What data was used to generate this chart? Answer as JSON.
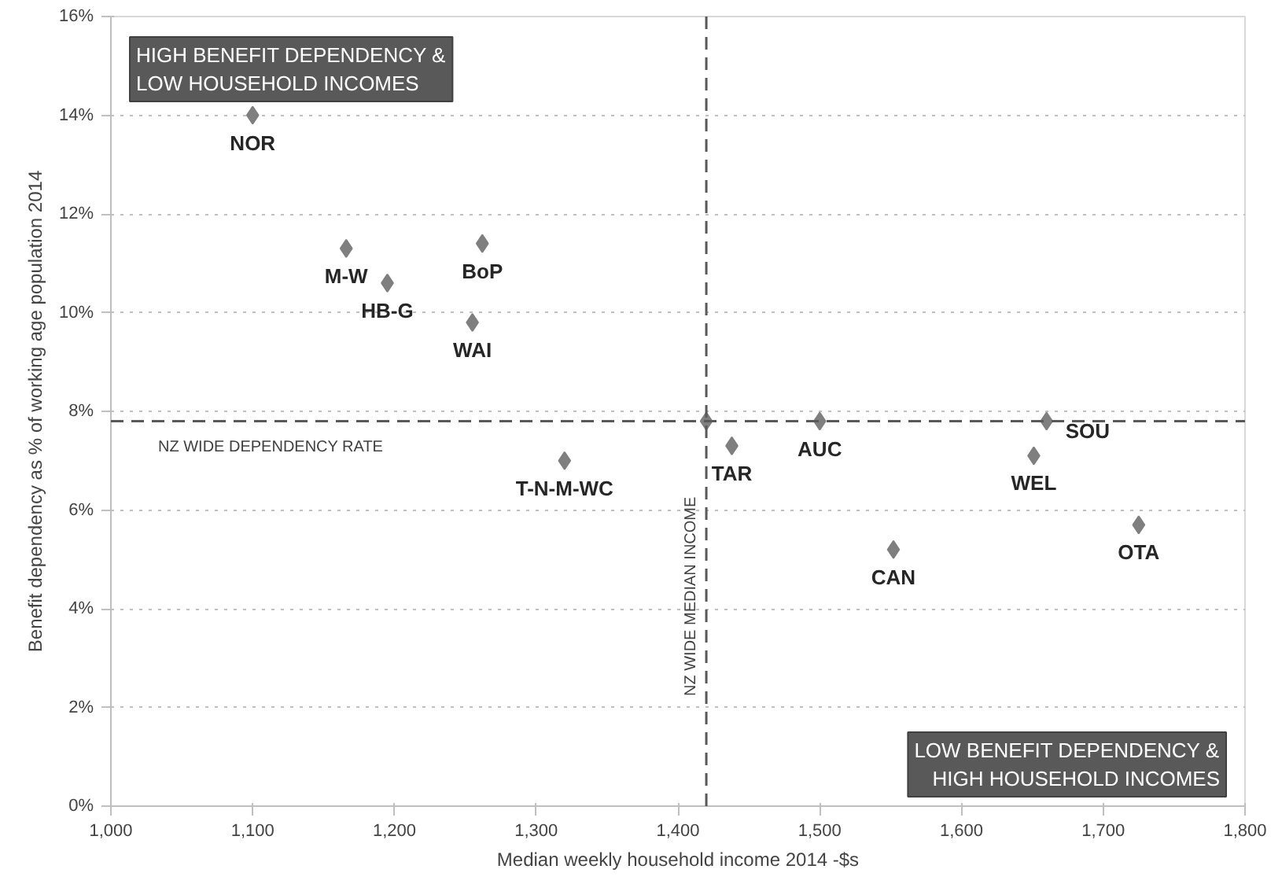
{
  "chart_data": {
    "type": "scatter",
    "xlabel": "Median weekly household income 2014 -$s",
    "ylabel": "Benefit dependency as % of working age population 2014",
    "x": [
      1100,
      1166,
      1195,
      1262,
      1255,
      1320,
      1420,
      1438,
      1500,
      1552,
      1651,
      1660,
      1725
    ],
    "values": [
      14.0,
      11.3,
      10.6,
      11.4,
      9.8,
      7.0,
      7.8,
      7.3,
      7.8,
      5.2,
      7.1,
      7.8,
      5.7
    ],
    "color": "#7f7f7f",
    "marker": "diamond",
    "grid": "y",
    "xlim": [
      1000,
      1800
    ],
    "ylim": [
      0,
      16
    ],
    "xticks": [
      {
        "value": 1000,
        "label": "1,000"
      },
      {
        "value": 1100,
        "label": "1,100"
      },
      {
        "value": 1200,
        "label": "1,200"
      },
      {
        "value": 1300,
        "label": "1,300"
      },
      {
        "value": 1400,
        "label": "1,400"
      },
      {
        "value": 1500,
        "label": "1,500"
      },
      {
        "value": 1600,
        "label": "1,600"
      },
      {
        "value": 1700,
        "label": "1,700"
      },
      {
        "value": 1800,
        "label": "1,800"
      }
    ],
    "yticks": [
      {
        "value": 0,
        "label": "0%"
      },
      {
        "value": 2,
        "label": "2%"
      },
      {
        "value": 4,
        "label": "4%"
      },
      {
        "value": 6,
        "label": "6%"
      },
      {
        "value": 8,
        "label": "8%"
      },
      {
        "value": 10,
        "label": "10%"
      },
      {
        "value": 12,
        "label": "12%"
      },
      {
        "value": 14,
        "label": "14%"
      },
      {
        "value": 16,
        "label": "16%"
      }
    ],
    "ref_lines": [
      {
        "axis": "y",
        "value": 7.8,
        "label": "NZ WIDE DEPENDENCY RATE",
        "line_style": "dashed",
        "color": "#595959"
      },
      {
        "axis": "x",
        "value": 1420,
        "label": "NZ WIDE MEDIAN INCOME",
        "line_style": "dashed",
        "color": "#595959"
      }
    ],
    "annotations": [
      "HIGH BENEFIT DEPENDENCY &\nLOW HOUSEHOLD INCOMES",
      "LOW BENEFIT DEPENDENCY &\nHIGH HOUSEHOLD INCOMES",
      {
        "text": "NOR",
        "x": 1100,
        "y": 14.0
      },
      {
        "text": "M-W",
        "x": 1166,
        "y": 11.3
      },
      {
        "text": "HB-G",
        "x": 1195,
        "y": 10.6
      },
      {
        "text": "BoP",
        "x": 1262,
        "y": 11.4
      },
      {
        "text": "WAI",
        "x": 1255,
        "y": 9.8
      },
      {
        "text": "T-N-M-WC",
        "x": 1320,
        "y": 7.0
      },
      {
        "text": "TAR",
        "x": 1438,
        "y": 7.3
      },
      {
        "text": "AUC",
        "x": 1500,
        "y": 7.8
      },
      {
        "text": "CAN",
        "x": 1552,
        "y": 5.2
      },
      {
        "text": "WEL",
        "x": 1651,
        "y": 7.1
      },
      {
        "text": "SOU",
        "x": 1660,
        "y": 7.8
      },
      {
        "text": "OTA",
        "x": 1725,
        "y": 5.7
      }
    ]
  }
}
